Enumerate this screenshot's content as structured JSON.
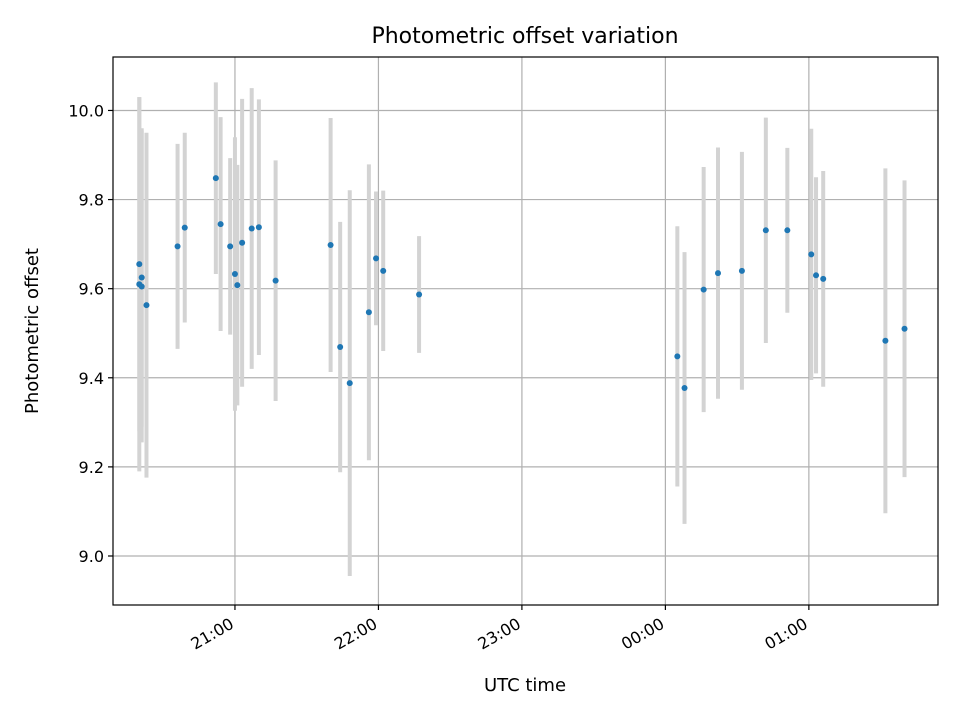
{
  "chart_data": {
    "type": "scatter",
    "title": "Photometric offset variation",
    "xlabel": "UTC time",
    "ylabel": "Photometric offset",
    "grid": true,
    "xlim": [
      "20:09",
      "25:54"
    ],
    "ylim": [
      8.89,
      10.12
    ],
    "x_ticks": [
      {
        "label": "21:00",
        "value": "21:00"
      },
      {
        "label": "22:00",
        "value": "22:00"
      },
      {
        "label": "23:00",
        "value": "23:00"
      },
      {
        "label": "00:00",
        "value": "24:00"
      },
      {
        "label": "01:00",
        "value": "25:00"
      }
    ],
    "y_ticks": [
      9.0,
      9.2,
      9.4,
      9.6,
      9.8,
      10.0
    ],
    "colors": {
      "point": "#1f77b4",
      "errorbar": "#d3d3d3",
      "grid": "#b0b0b0"
    },
    "points": [
      {
        "x": "20:20",
        "y": 9.61,
        "err": 0.42
      },
      {
        "x": "20:20",
        "y": 9.655,
        "err": 0.375
      },
      {
        "x": "20:21",
        "y": 9.625,
        "err": 0.335
      },
      {
        "x": "20:21",
        "y": 9.605,
        "err": 0.35
      },
      {
        "x": "20:23",
        "y": 9.563,
        "err": 0.387
      },
      {
        "x": "20:36",
        "y": 9.695,
        "err": 0.23
      },
      {
        "x": "20:39",
        "y": 9.737,
        "err": 0.213
      },
      {
        "x": "20:52",
        "y": 9.848,
        "err": 0.215
      },
      {
        "x": "20:54",
        "y": 9.745,
        "err": 0.24
      },
      {
        "x": "20:58",
        "y": 9.695,
        "err": 0.198
      },
      {
        "x": "21:00",
        "y": 9.633,
        "err": 0.307
      },
      {
        "x": "21:01",
        "y": 9.608,
        "err": 0.27
      },
      {
        "x": "21:03",
        "y": 9.703,
        "err": 0.323
      },
      {
        "x": "21:07",
        "y": 9.735,
        "err": 0.315
      },
      {
        "x": "21:10",
        "y": 9.738,
        "err": 0.287
      },
      {
        "x": "21:17",
        "y": 9.618,
        "err": 0.27
      },
      {
        "x": "21:40",
        "y": 9.698,
        "err": 0.285
      },
      {
        "x": "21:44",
        "y": 9.469,
        "err": 0.281
      },
      {
        "x": "21:48",
        "y": 9.388,
        "err": 0.433
      },
      {
        "x": "21:56",
        "y": 9.547,
        "err": 0.332
      },
      {
        "x": "21:59",
        "y": 9.668,
        "err": 0.15
      },
      {
        "x": "22:02",
        "y": 9.64,
        "err": 0.18
      },
      {
        "x": "22:17",
        "y": 9.587,
        "err": 0.131
      },
      {
        "x": "24:05",
        "y": 9.448,
        "err": 0.292
      },
      {
        "x": "24:08",
        "y": 9.377,
        "err": 0.305
      },
      {
        "x": "24:16",
        "y": 9.598,
        "err": 0.275
      },
      {
        "x": "24:22",
        "y": 9.635,
        "err": 0.282
      },
      {
        "x": "24:32",
        "y": 9.64,
        "err": 0.267
      },
      {
        "x": "24:42",
        "y": 9.731,
        "err": 0.253
      },
      {
        "x": "24:51",
        "y": 9.731,
        "err": 0.185
      },
      {
        "x": "25:01",
        "y": 9.677,
        "err": 0.282
      },
      {
        "x": "25:03",
        "y": 9.63,
        "err": 0.22
      },
      {
        "x": "25:06",
        "y": 9.622,
        "err": 0.242
      },
      {
        "x": "25:32",
        "y": 9.483,
        "err": 0.387
      },
      {
        "x": "25:40",
        "y": 9.51,
        "err": 0.333
      }
    ]
  }
}
